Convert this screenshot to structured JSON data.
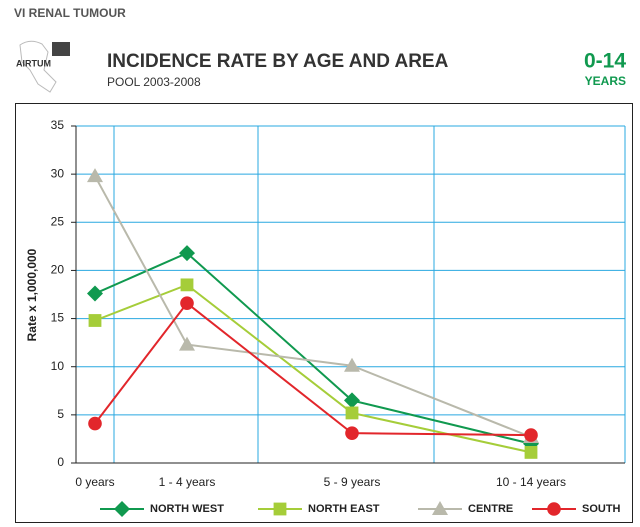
{
  "header": {
    "section": "VI RENAL TUMOUR",
    "logo": "AIRTUM",
    "age_range": "0-14",
    "age_unit": "YEARS"
  },
  "chart_data": {
    "type": "line",
    "title": "INCIDENCE RATE BY AGE AND AREA",
    "subtitle": "POOL 2003-2008",
    "y_label": "Rate x 1,000,000",
    "categories": [
      "0 years",
      "1 - 4 years",
      "5 - 9 years",
      "10 - 14 years"
    ],
    "ylim": [
      0,
      35
    ],
    "yticks": [
      0,
      5,
      10,
      15,
      20,
      25,
      30,
      35
    ],
    "grid": true,
    "legend": "bottom",
    "series": [
      {
        "name": "NORTH WEST",
        "color": "#10994f",
        "marker": "diamond",
        "values": [
          17.6,
          21.8,
          6.5,
          2.0
        ]
      },
      {
        "name": "NORTH EAST",
        "color": "#a5cd39",
        "marker": "square",
        "values": [
          14.8,
          18.5,
          5.2,
          1.1
        ]
      },
      {
        "name": "CENTRE",
        "color": "#b9b9ab",
        "marker": "triangle",
        "values": [
          29.8,
          12.3,
          10.1,
          2.7
        ]
      },
      {
        "name": "SOUTH",
        "color": "#e2262b",
        "marker": "circle",
        "values": [
          4.1,
          16.6,
          3.1,
          2.9
        ]
      }
    ]
  }
}
